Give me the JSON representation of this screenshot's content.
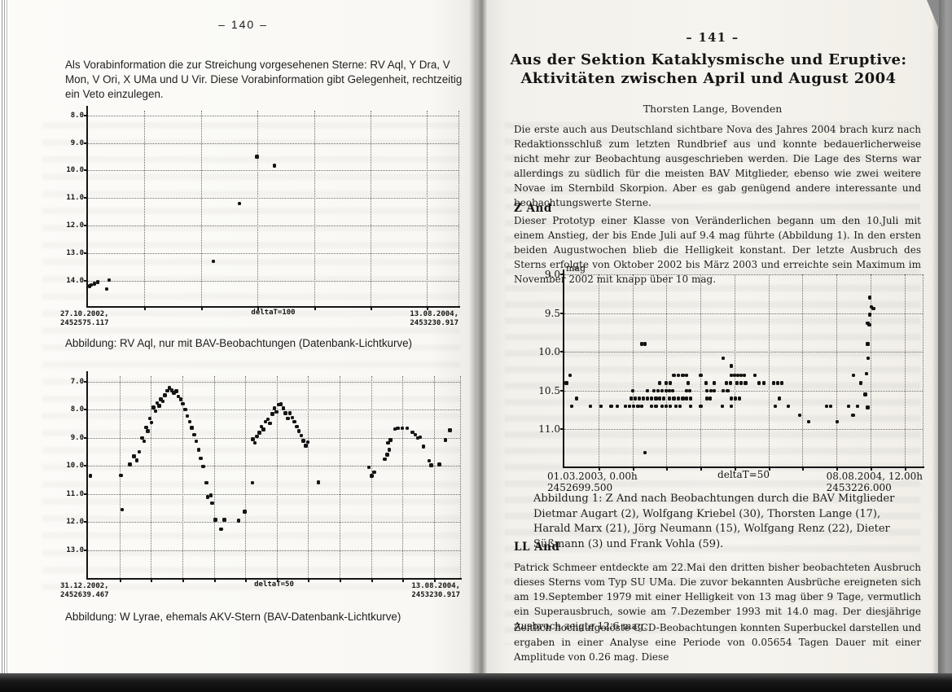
{
  "colors": {
    "ink": "#1c1c1c",
    "chart-ink": "#141414",
    "grid": "#6e6e6e"
  },
  "left_page": {
    "page_number": "–  140  –",
    "intro": "Als Vorabinformation die zur Streichung vorgesehenen Sterne: RV Aql, Y Dra, V Mon, V Ori, X UMa und U Vir. Diese Vorabinformation gibt Gelegenheit, rechtzeitig ein Veto einzulegen.",
    "figures": [
      {
        "caption": "Abbildung: RV Aql, nur mit BAV-Beobachtungen (Datenbank-Lichtkurve)"
      },
      {
        "caption": "Abbildung: W Lyrae, ehemals AKV-Stern  (BAV-Datenbank-Lichtkurve)"
      }
    ]
  },
  "right_page": {
    "page_number": "–  141  –",
    "title_line1": "Aus der Sektion Kataklysmische und Eruptive:",
    "title_line2": "Aktivitäten zwischen April und August 2004",
    "author": "Thorsten Lange, Bovenden",
    "intro_paragraph": "Die erste auch aus Deutschland sichtbare Nova des Jahres 2004 brach kurz nach Redaktionsschluß zum letzten Rundbrief aus und konnte bedauerlicherweise nicht mehr zur Beobachtung ausgeschrieben werden. Die Lage des Sterns war allerdings zu südlich für die meisten BAV Mitglieder, ebenso wie zwei weitere Novae im Sternbild Skorpion. Aber es gab genügend andere interessante und beobachtungswerte Sterne.",
    "section_z_and": {
      "heading": "Z And",
      "paragraph": "Dieser Prototyp einer Klasse von Veränderlichen begann um den 10.Juli mit einem Anstieg, der bis Ende Juli auf 9.4 mag führte (Abbildung 1). In den ersten beiden Augustwochen blieb die Helligkeit konstant. Der letzte Ausbruch des Sterns erfolgte von Oktober 2002 bis März 2003 und erreichte sein Maximum im November 2002 mit knapp über 10 mag."
    },
    "figure_caption": "Abbildung 1: Z And nach Beobachtungen durch die BAV Mitglieder Dietmar Augart (2), Wolfgang Kriebel (30), Thorsten Lange (17), Harald Marx (21), Jörg Neumann (15), Wolfgang Renz (22), Dieter Süßmann (3) und Frank Vohla (59).",
    "section_ll_and": {
      "heading": "LL And",
      "paragraph1": "Patrick Schmeer entdeckte am 22.Mai den dritten bisher beobachteten Ausbruch dieses Sterns vom Typ SU UMa. Die zuvor bekannten Ausbrüche ereigneten sich am 19.September 1979 mit einer Helligkeit von 13 mag über 9 Tage, vermutlich ein Superausbruch, sowie am 7.Dezember 1993 mit 14.0 mag. Der diesjährige Ausbruch zeigte 12.6 mag.",
      "paragraph2": "Zeitlich hochaufgelöste CCD-Beobachtungen konnten Superbuckel darstellen und ergaben in einer Analyse eine Periode von 0.05654 Tagen Dauer mit einer Amplitude von 0.26 mag. Diese"
    }
  },
  "chart_data": [
    {
      "type": "scatter",
      "star": "RV Aql",
      "title": "RV Aql, nur mit BAV-Beobachtungen (Datenbank-Lichtkurve)",
      "ylabel": "",
      "y_unit": "mag (brightness, inverted axis)",
      "y_ticks": [
        8.0,
        9.0,
        10.0,
        11.0,
        12.0,
        13.0,
        14.0
      ],
      "ylim": [
        7.83,
        14.92
      ],
      "x_start": {
        "date": "27.10.2002,",
        "jd": "2452575.117"
      },
      "x_end": {
        "date": "13.08.2004,",
        "jd": "2453230.917"
      },
      "delta_t_label": "deltaT=100",
      "delta_t_days": 100,
      "x_unit": "fraction of time axis (JD 2452575.117 - 2453230.917)",
      "points": [
        [
          0.004,
          14.2
        ],
        [
          0.009,
          14.15
        ],
        [
          0.018,
          14.1
        ],
        [
          0.026,
          14.05
        ],
        [
          0.05,
          14.3
        ],
        [
          0.057,
          13.98
        ],
        [
          0.338,
          13.3
        ],
        [
          0.409,
          11.2
        ],
        [
          0.456,
          9.5
        ],
        [
          0.503,
          9.82
        ]
      ]
    },
    {
      "type": "scatter",
      "star": "W Lyrae",
      "title": "W Lyrae, ehemals AKV-Stern (BAV-Datenbank-Lichtkurve)",
      "ylabel": "",
      "y_unit": "mag (brightness, inverted axis)",
      "y_ticks": [
        7.0,
        8.0,
        9.0,
        10.0,
        11.0,
        12.0,
        13.0
      ],
      "ylim": [
        6.8,
        13.99
      ],
      "x_start": {
        "date": "31.12.2002,",
        "jd": "2452639.467"
      },
      "x_end": {
        "date": "13.08.2004,",
        "jd": "2453230.917"
      },
      "delta_t_label": "deltaT=50",
      "delta_t_days": 50,
      "x_unit": "fraction of time axis (JD 2452639.467 - 2453230.917)",
      "points": [
        [
          0.006,
          10.35
        ],
        [
          0.088,
          10.33
        ],
        [
          0.092,
          11.55
        ],
        [
          0.113,
          9.95
        ],
        [
          0.123,
          9.65
        ],
        [
          0.131,
          9.8
        ],
        [
          0.138,
          9.5
        ],
        [
          0.145,
          9.0
        ],
        [
          0.151,
          9.12
        ],
        [
          0.156,
          8.62
        ],
        [
          0.161,
          8.75
        ],
        [
          0.166,
          8.3
        ],
        [
          0.171,
          8.45
        ],
        [
          0.176,
          7.92
        ],
        [
          0.181,
          8.04
        ],
        [
          0.186,
          7.75
        ],
        [
          0.191,
          7.86
        ],
        [
          0.196,
          7.62
        ],
        [
          0.201,
          7.7
        ],
        [
          0.207,
          7.48
        ],
        [
          0.213,
          7.32
        ],
        [
          0.219,
          7.22
        ],
        [
          0.225,
          7.3
        ],
        [
          0.231,
          7.4
        ],
        [
          0.237,
          7.34
        ],
        [
          0.243,
          7.52
        ],
        [
          0.249,
          7.62
        ],
        [
          0.255,
          7.78
        ],
        [
          0.261,
          7.98
        ],
        [
          0.267,
          8.22
        ],
        [
          0.273,
          8.42
        ],
        [
          0.279,
          8.64
        ],
        [
          0.285,
          8.88
        ],
        [
          0.291,
          9.12
        ],
        [
          0.297,
          9.42
        ],
        [
          0.303,
          9.72
        ],
        [
          0.309,
          10.02
        ],
        [
          0.318,
          10.6
        ],
        [
          0.322,
          11.1
        ],
        [
          0.33,
          11.05
        ],
        [
          0.334,
          11.32
        ],
        [
          0.342,
          11.92
        ],
        [
          0.358,
          12.25
        ],
        [
          0.366,
          11.92
        ],
        [
          0.405,
          11.95
        ],
        [
          0.421,
          11.62
        ],
        [
          0.442,
          10.6
        ],
        [
          0.443,
          9.05
        ],
        [
          0.449,
          9.18
        ],
        [
          0.454,
          8.95
        ],
        [
          0.46,
          8.82
        ],
        [
          0.466,
          8.6
        ],
        [
          0.471,
          8.7
        ],
        [
          0.477,
          8.42
        ],
        [
          0.483,
          8.33
        ],
        [
          0.489,
          8.48
        ],
        [
          0.495,
          8.15
        ],
        [
          0.501,
          7.95
        ],
        [
          0.507,
          8.08
        ],
        [
          0.513,
          7.82
        ],
        [
          0.519,
          7.8
        ],
        [
          0.525,
          7.95
        ],
        [
          0.531,
          8.12
        ],
        [
          0.537,
          8.3
        ],
        [
          0.543,
          8.12
        ],
        [
          0.549,
          8.28
        ],
        [
          0.555,
          8.42
        ],
        [
          0.561,
          8.6
        ],
        [
          0.567,
          8.75
        ],
        [
          0.573,
          8.92
        ],
        [
          0.579,
          9.1
        ],
        [
          0.585,
          9.28
        ],
        [
          0.591,
          9.15
        ],
        [
          0.619,
          10.58
        ],
        [
          0.755,
          10.05
        ],
        [
          0.762,
          10.35
        ],
        [
          0.769,
          10.22
        ],
        [
          0.798,
          9.75
        ],
        [
          0.804,
          9.6
        ],
        [
          0.81,
          9.42
        ],
        [
          0.806,
          9.18
        ],
        [
          0.813,
          9.08
        ],
        [
          0.825,
          8.68
        ],
        [
          0.832,
          8.65
        ],
        [
          0.845,
          8.65
        ],
        [
          0.858,
          8.66
        ],
        [
          0.872,
          8.8
        ],
        [
          0.879,
          8.88
        ],
        [
          0.886,
          9.0
        ],
        [
          0.893,
          8.97
        ],
        [
          0.901,
          9.3
        ],
        [
          0.917,
          9.82
        ],
        [
          0.922,
          9.98
        ],
        [
          0.944,
          9.95
        ],
        [
          0.96,
          9.08
        ],
        [
          0.972,
          8.72
        ]
      ]
    },
    {
      "type": "scatter",
      "star": "Z And",
      "title": "Z And nach Beobachtungen durch die BAV Mitglieder",
      "ylabel": "mag",
      "y_unit": "mag (brightness, inverted axis)",
      "y_ticks": [
        9.0,
        9.5,
        10.0,
        10.5,
        11.0
      ],
      "ylim": [
        9.0,
        11.48
      ],
      "x_start": {
        "date": "01.03.2003,  0.00h",
        "jd": "2452699.500"
      },
      "x_end": {
        "date": "08.08.2004, 12.00h",
        "jd": "2453226.000"
      },
      "delta_t_label": "deltaT=50",
      "delta_t_days": 50,
      "x_unit": "fraction of time axis (JD 2452699.500 - 2453226.000)",
      "points": [
        [
          0.016,
          10.3
        ],
        [
          0.305,
          10.3
        ],
        [
          0.318,
          10.3
        ],
        [
          0.33,
          10.3
        ],
        [
          0.341,
          10.3
        ],
        [
          0.38,
          10.3
        ],
        [
          0.466,
          10.3
        ],
        [
          0.475,
          10.3
        ],
        [
          0.484,
          10.3
        ],
        [
          0.493,
          10.3
        ],
        [
          0.502,
          10.3
        ],
        [
          0.532,
          10.3
        ],
        [
          0.807,
          10.3
        ],
        [
          0.005,
          10.4
        ],
        [
          0.266,
          10.4
        ],
        [
          0.284,
          10.4
        ],
        [
          0.295,
          10.4
        ],
        [
          0.345,
          10.4
        ],
        [
          0.395,
          10.4
        ],
        [
          0.418,
          10.4
        ],
        [
          0.452,
          10.4
        ],
        [
          0.464,
          10.4
        ],
        [
          0.482,
          10.4
        ],
        [
          0.493,
          10.4
        ],
        [
          0.505,
          10.4
        ],
        [
          0.543,
          10.4
        ],
        [
          0.557,
          10.4
        ],
        [
          0.584,
          10.4
        ],
        [
          0.595,
          10.4
        ],
        [
          0.607,
          10.4
        ],
        [
          0.827,
          10.4
        ],
        [
          0.191,
          10.5
        ],
        [
          0.232,
          10.5
        ],
        [
          0.25,
          10.5
        ],
        [
          0.261,
          10.5
        ],
        [
          0.273,
          10.5
        ],
        [
          0.284,
          10.5
        ],
        [
          0.293,
          10.5
        ],
        [
          0.302,
          10.5
        ],
        [
          0.341,
          10.5
        ],
        [
          0.35,
          10.5
        ],
        [
          0.398,
          10.5
        ],
        [
          0.409,
          10.5
        ],
        [
          0.418,
          10.5
        ],
        [
          0.443,
          10.5
        ],
        [
          0.455,
          10.5
        ],
        [
          0.034,
          10.6
        ],
        [
          0.186,
          10.6
        ],
        [
          0.198,
          10.6
        ],
        [
          0.209,
          10.6
        ],
        [
          0.22,
          10.6
        ],
        [
          0.232,
          10.6
        ],
        [
          0.243,
          10.6
        ],
        [
          0.255,
          10.6
        ],
        [
          0.266,
          10.6
        ],
        [
          0.277,
          10.6
        ],
        [
          0.293,
          10.6
        ],
        [
          0.305,
          10.6
        ],
        [
          0.318,
          10.6
        ],
        [
          0.33,
          10.6
        ],
        [
          0.341,
          10.6
        ],
        [
          0.352,
          10.6
        ],
        [
          0.398,
          10.6
        ],
        [
          0.407,
          10.6
        ],
        [
          0.466,
          10.6
        ],
        [
          0.477,
          10.6
        ],
        [
          0.489,
          10.6
        ],
        [
          0.6,
          10.6
        ],
        [
          0.02,
          10.7
        ],
        [
          0.073,
          10.7
        ],
        [
          0.102,
          10.7
        ],
        [
          0.13,
          10.7
        ],
        [
          0.148,
          10.7
        ],
        [
          0.17,
          10.7
        ],
        [
          0.182,
          10.7
        ],
        [
          0.193,
          10.7
        ],
        [
          0.205,
          10.7
        ],
        [
          0.216,
          10.7
        ],
        [
          0.243,
          10.7
        ],
        [
          0.255,
          10.7
        ],
        [
          0.273,
          10.7
        ],
        [
          0.284,
          10.7
        ],
        [
          0.295,
          10.7
        ],
        [
          0.311,
          10.7
        ],
        [
          0.323,
          10.7
        ],
        [
          0.352,
          10.7
        ],
        [
          0.38,
          10.7
        ],
        [
          0.441,
          10.7
        ],
        [
          0.466,
          10.7
        ],
        [
          0.589,
          10.7
        ],
        [
          0.625,
          10.7
        ],
        [
          0.732,
          10.7
        ],
        [
          0.743,
          10.7
        ],
        [
          0.793,
          10.7
        ],
        [
          0.818,
          10.7
        ],
        [
          0.216,
          9.9
        ],
        [
          0.225,
          9.9
        ],
        [
          0.443,
          10.08
        ],
        [
          0.466,
          10.18
        ],
        [
          0.225,
          11.3
        ],
        [
          0.657,
          10.82
        ],
        [
          0.682,
          10.9
        ],
        [
          0.761,
          10.9
        ],
        [
          0.805,
          10.82
        ],
        [
          0.852,
          9.3
        ],
        [
          0.857,
          9.42
        ],
        [
          0.862,
          9.44
        ],
        [
          0.852,
          9.52
        ],
        [
          0.846,
          9.63
        ],
        [
          0.851,
          9.65
        ],
        [
          0.846,
          9.9
        ],
        [
          0.848,
          10.08
        ],
        [
          0.843,
          10.28
        ],
        [
          0.84,
          10.55
        ],
        [
          0.846,
          10.72
        ]
      ]
    }
  ]
}
